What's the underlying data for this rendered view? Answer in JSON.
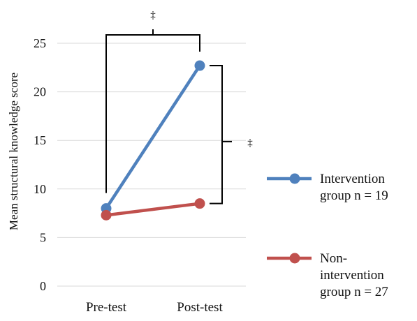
{
  "chart_data": {
    "type": "line",
    "categories": [
      "Pre-test",
      "Post-test"
    ],
    "ylabel": "Mean structural knowledge score",
    "xlabel": "",
    "ylim": [
      0,
      25
    ],
    "yticks": [
      0,
      5,
      10,
      15,
      20,
      25
    ],
    "grid": true,
    "legend_position": "right",
    "series": [
      {
        "name_lines": [
          "Intervention",
          "group n = 19"
        ],
        "values": [
          8.0,
          22.7
        ],
        "color": "#4f81bd"
      },
      {
        "name_lines": [
          "Non-",
          "intervention",
          "group n = 27"
        ],
        "values": [
          7.3,
          8.5
        ],
        "color": "#c0504d"
      }
    ],
    "annotations": [
      {
        "text": "‡",
        "between": "intervention pre-test vs post-test"
      },
      {
        "text": "‡",
        "between": "intervention vs non-intervention at post-test"
      }
    ]
  }
}
